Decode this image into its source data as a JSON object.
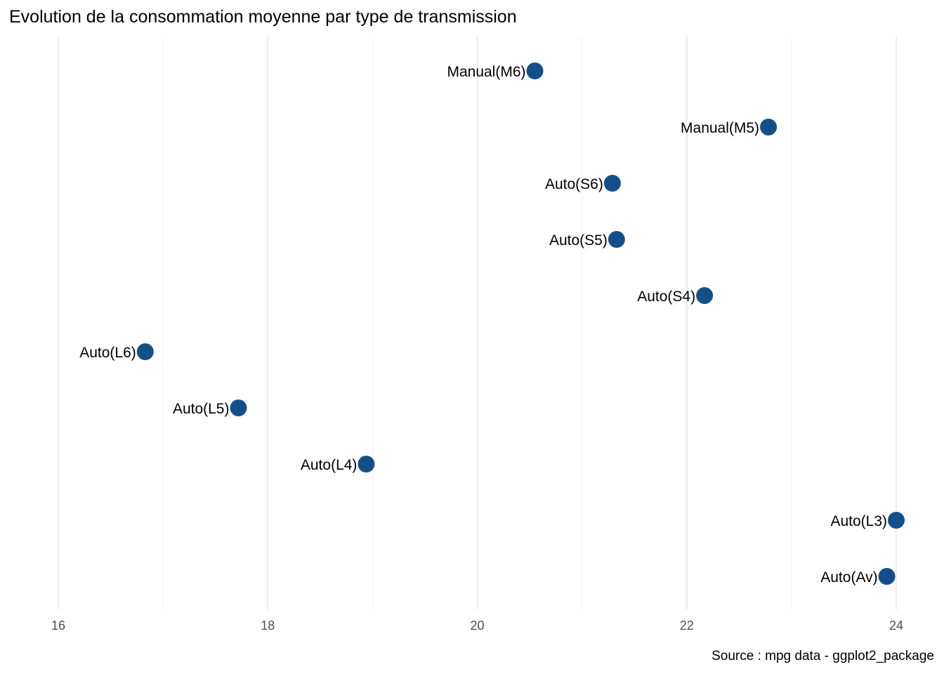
{
  "chart_data": {
    "type": "scatter",
    "title": "Evolution de la consommation moyenne par type de transmission",
    "caption": "Source : mpg data - ggplot2_package",
    "xlabel": "",
    "ylabel": "",
    "xlim": [
      16,
      24
    ],
    "x_ticks": [
      16,
      18,
      20,
      22,
      24
    ],
    "grid": "vertical",
    "point_color": "#154f8a",
    "categories": [
      "Manual(M6)",
      "Manual(M5)",
      "Auto(S6)",
      "Auto(S5)",
      "Auto(S4)",
      "Auto(L6)",
      "Auto(L5)",
      "Auto(L4)",
      "Auto(L3)",
      "Auto(Av)"
    ],
    "values": [
      20.55,
      22.78,
      21.29,
      21.33,
      22.17,
      16.83,
      17.72,
      18.94,
      24.0,
      23.91
    ]
  }
}
